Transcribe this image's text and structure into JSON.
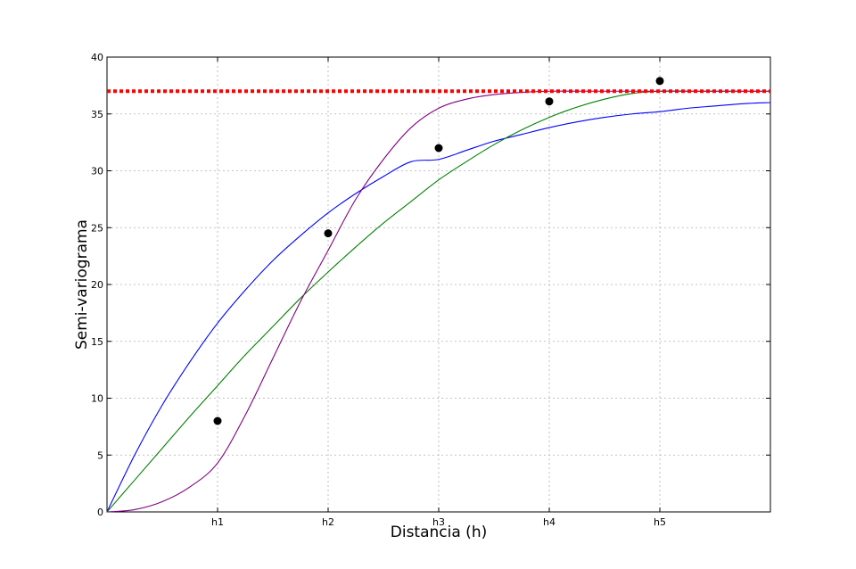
{
  "chart_data": {
    "type": "line",
    "title": "",
    "xlabel": "Distancia (h)",
    "ylabel": "Semi-variograma",
    "x_range": [
      0,
      6
    ],
    "ylim": [
      0,
      40
    ],
    "grid": true,
    "x_ticks": [
      {
        "value": 1,
        "label": "h1"
      },
      {
        "value": 2,
        "label": "h2"
      },
      {
        "value": 3,
        "label": "h3"
      },
      {
        "value": 4,
        "label": "h4"
      },
      {
        "value": 5,
        "label": "h5"
      }
    ],
    "y_ticks": [
      0,
      5,
      10,
      15,
      20,
      25,
      30,
      35,
      40
    ],
    "points": {
      "color": "#000000",
      "x": [
        1,
        2,
        3,
        4,
        5
      ],
      "y": [
        8.0,
        24.5,
        32.0,
        36.1,
        37.9
      ]
    },
    "series": [
      {
        "color": "#0000ff",
        "model": "exponential",
        "x": [
          0,
          0.25,
          0.5,
          0.75,
          1,
          1.25,
          1.5,
          1.75,
          2,
          2.25,
          2.5,
          2.75,
          3,
          3.25,
          3.5,
          3.75,
          4,
          4.25,
          4.5,
          4.75,
          5,
          5.25,
          5.5,
          5.75,
          6
        ],
        "y": [
          0,
          5.0,
          9.4,
          13.2,
          16.6,
          19.5,
          22.1,
          24.3,
          26.3,
          28.0,
          29.5,
          30.8,
          31.0,
          31.8,
          32.6,
          33.2,
          33.8,
          34.3,
          34.7,
          35.0,
          35.2,
          35.5,
          35.7,
          35.9,
          36.0
        ]
      },
      {
        "color": "#008000",
        "model": "spherical",
        "x": [
          0,
          0.25,
          0.5,
          0.75,
          1,
          1.25,
          1.5,
          1.75,
          2,
          2.25,
          2.5,
          2.75,
          3,
          3.25,
          3.5,
          3.75,
          4,
          4.25,
          4.5,
          4.75,
          5,
          5.25,
          5.5,
          5.75,
          6
        ],
        "y": [
          0,
          2.8,
          5.6,
          8.4,
          11.1,
          13.8,
          16.3,
          18.8,
          21.1,
          23.3,
          25.4,
          27.3,
          29.2,
          30.8,
          32.3,
          33.6,
          34.7,
          35.6,
          36.3,
          36.8,
          37.0,
          37.0,
          37.0,
          37.0,
          37.0
        ]
      },
      {
        "color": "#800080",
        "model": "gaussian",
        "x": [
          0,
          0.25,
          0.5,
          0.75,
          1,
          1.25,
          1.5,
          1.75,
          2,
          2.25,
          2.5,
          2.75,
          3,
          3.25,
          3.5,
          3.75,
          4,
          4.25,
          4.5,
          4.75,
          5,
          5.25,
          5.5,
          5.75,
          6
        ],
        "y": [
          0,
          0.2,
          0.9,
          2.2,
          4.3,
          8.5,
          13.5,
          18.5,
          23.0,
          27.5,
          31.0,
          33.8,
          35.5,
          36.3,
          36.7,
          36.9,
          37.0,
          37.0,
          37.0,
          37.0,
          37.0,
          37.0,
          37.0,
          37.0,
          37.0
        ]
      }
    ],
    "sill": {
      "y": 37.0,
      "color": "#ff0000",
      "style": "dotted"
    }
  }
}
